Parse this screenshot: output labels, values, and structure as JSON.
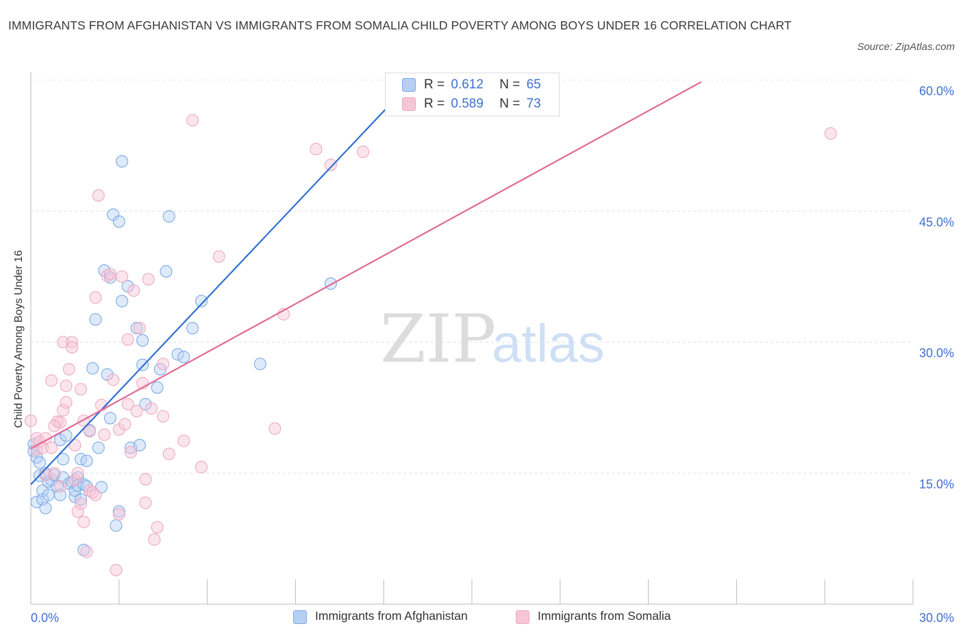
{
  "chart_data": {
    "type": "scatter",
    "title": "IMMIGRANTS FROM AFGHANISTAN VS IMMIGRANTS FROM SOMALIA CHILD POVERTY AMONG BOYS UNDER 16 CORRELATION CHART",
    "source": "Source: ZipAtlas.com",
    "ylabel": "Child Poverty Among Boys Under 16",
    "xlabel": "",
    "xlim": [
      0,
      30
    ],
    "ylim": [
      0,
      60
    ],
    "x_tick_labels": [
      "0.0%",
      "30.0%"
    ],
    "y_ticks": [
      15,
      30,
      45,
      60
    ],
    "y_tick_labels": [
      "15.0%",
      "30.0%",
      "45.0%",
      "60.0%"
    ],
    "grid": "horizontal dashed",
    "watermark": "ZIPatlas",
    "legend_stats": [
      {
        "r_label": "R =",
        "r": "0.612",
        "n_label": "N =",
        "n": "65"
      },
      {
        "r_label": "R =",
        "r": "0.589",
        "n_label": "N =",
        "n": "73"
      }
    ],
    "series": [
      {
        "name": "Immigrants from Afghanistan",
        "color": "#7aaae6",
        "fill": "#b5d0f3",
        "line_color": "#2f6fd0",
        "trend": {
          "x0": 0.0,
          "y0": 13.7,
          "x1": 13.0,
          "y1": 60.0
        },
        "points": [
          [
            0.1,
            18.3
          ],
          [
            0.1,
            17.5
          ],
          [
            0.2,
            11.7
          ],
          [
            0.2,
            16.8
          ],
          [
            0.3,
            16.2
          ],
          [
            0.3,
            14.7
          ],
          [
            0.4,
            12.0
          ],
          [
            0.4,
            13.0
          ],
          [
            0.5,
            11.0
          ],
          [
            0.6,
            12.5
          ],
          [
            0.6,
            14.0
          ],
          [
            0.7,
            14.2
          ],
          [
            0.8,
            14.8
          ],
          [
            0.9,
            13.5
          ],
          [
            1.0,
            12.5
          ],
          [
            1.0,
            18.8
          ],
          [
            1.1,
            14.5
          ],
          [
            1.2,
            19.3
          ],
          [
            1.3,
            13.8
          ],
          [
            1.4,
            14.0
          ],
          [
            1.5,
            12.3
          ],
          [
            1.5,
            13.0
          ],
          [
            1.6,
            14.5
          ],
          [
            1.6,
            13.6
          ],
          [
            1.7,
            12.0
          ],
          [
            1.7,
            16.6
          ],
          [
            1.8,
            6.2
          ],
          [
            1.8,
            13.7
          ],
          [
            1.9,
            13.5
          ],
          [
            1.9,
            16.4
          ],
          [
            2.0,
            19.9
          ],
          [
            2.1,
            27.0
          ],
          [
            2.2,
            32.6
          ],
          [
            2.3,
            17.9
          ],
          [
            2.4,
            13.4
          ],
          [
            2.5,
            38.2
          ],
          [
            2.6,
            26.3
          ],
          [
            2.7,
            21.3
          ],
          [
            2.7,
            37.4
          ],
          [
            2.8,
            44.6
          ],
          [
            2.9,
            9.0
          ],
          [
            3.0,
            10.6
          ],
          [
            3.0,
            43.8
          ],
          [
            3.1,
            34.7
          ],
          [
            3.1,
            50.7
          ],
          [
            3.3,
            36.4
          ],
          [
            3.4,
            17.9
          ],
          [
            3.6,
            31.6
          ],
          [
            3.7,
            18.2
          ],
          [
            3.8,
            27.4
          ],
          [
            3.8,
            30.2
          ],
          [
            3.9,
            22.9
          ],
          [
            4.3,
            24.8
          ],
          [
            4.4,
            26.9
          ],
          [
            4.6,
            38.1
          ],
          [
            4.7,
            44.4
          ],
          [
            5.0,
            28.6
          ],
          [
            5.2,
            28.3
          ],
          [
            5.5,
            31.6
          ],
          [
            5.8,
            34.7
          ],
          [
            7.8,
            27.5
          ],
          [
            10.2,
            36.7
          ],
          [
            13.0,
            60.0
          ],
          [
            0.5,
            15.0
          ],
          [
            1.1,
            16.6
          ]
        ]
      },
      {
        "name": "Immigrants from Somalia",
        "color": "#eea8c0",
        "fill": "#f7c6d6",
        "line_color": "#e06893",
        "trend": {
          "x0": 0.0,
          "y0": 17.8,
          "x1": 22.8,
          "y1": 59.8
        },
        "points": [
          [
            0.0,
            21.0
          ],
          [
            0.2,
            19.0
          ],
          [
            0.2,
            17.7
          ],
          [
            0.3,
            18.6
          ],
          [
            0.4,
            17.9
          ],
          [
            0.5,
            14.8
          ],
          [
            0.5,
            19.0
          ],
          [
            0.7,
            25.6
          ],
          [
            0.8,
            15.0
          ],
          [
            0.9,
            20.9
          ],
          [
            1.0,
            20.8
          ],
          [
            1.0,
            13.5
          ],
          [
            1.1,
            22.2
          ],
          [
            1.1,
            30.0
          ],
          [
            1.2,
            23.1
          ],
          [
            1.2,
            25.0
          ],
          [
            1.3,
            26.9
          ],
          [
            1.4,
            30.0
          ],
          [
            1.4,
            29.4
          ],
          [
            1.5,
            18.2
          ],
          [
            1.5,
            14.2
          ],
          [
            1.6,
            15.0
          ],
          [
            1.6,
            10.6
          ],
          [
            1.7,
            11.5
          ],
          [
            1.7,
            24.6
          ],
          [
            1.8,
            9.4
          ],
          [
            1.8,
            21.0
          ],
          [
            1.9,
            6.0
          ],
          [
            2.0,
            19.8
          ],
          [
            2.0,
            13.0
          ],
          [
            2.1,
            12.8
          ],
          [
            2.2,
            35.1
          ],
          [
            2.2,
            12.5
          ],
          [
            2.3,
            46.8
          ],
          [
            2.4,
            22.8
          ],
          [
            2.5,
            19.4
          ],
          [
            2.6,
            37.6
          ],
          [
            2.7,
            37.8
          ],
          [
            2.8,
            25.7
          ],
          [
            2.9,
            3.9
          ],
          [
            3.0,
            20.0
          ],
          [
            3.0,
            10.3
          ],
          [
            3.1,
            37.5
          ],
          [
            3.2,
            20.6
          ],
          [
            3.3,
            30.3
          ],
          [
            3.3,
            22.9
          ],
          [
            3.4,
            17.4
          ],
          [
            3.5,
            35.9
          ],
          [
            3.6,
            22.1
          ],
          [
            3.7,
            31.6
          ],
          [
            3.8,
            25.3
          ],
          [
            3.9,
            14.3
          ],
          [
            3.9,
            11.6
          ],
          [
            4.0,
            37.2
          ],
          [
            4.1,
            22.4
          ],
          [
            4.2,
            7.4
          ],
          [
            4.3,
            8.8
          ],
          [
            4.5,
            21.5
          ],
          [
            4.5,
            27.5
          ],
          [
            4.7,
            17.2
          ],
          [
            5.2,
            18.7
          ],
          [
            5.5,
            55.4
          ],
          [
            5.8,
            15.7
          ],
          [
            6.4,
            39.8
          ],
          [
            8.3,
            20.1
          ],
          [
            8.6,
            33.2
          ],
          [
            9.7,
            52.1
          ],
          [
            10.2,
            50.3
          ],
          [
            11.3,
            51.8
          ],
          [
            13.4,
            58.1
          ],
          [
            27.2,
            53.9
          ],
          [
            0.8,
            20.4
          ],
          [
            0.7,
            17.9
          ]
        ]
      }
    ]
  }
}
